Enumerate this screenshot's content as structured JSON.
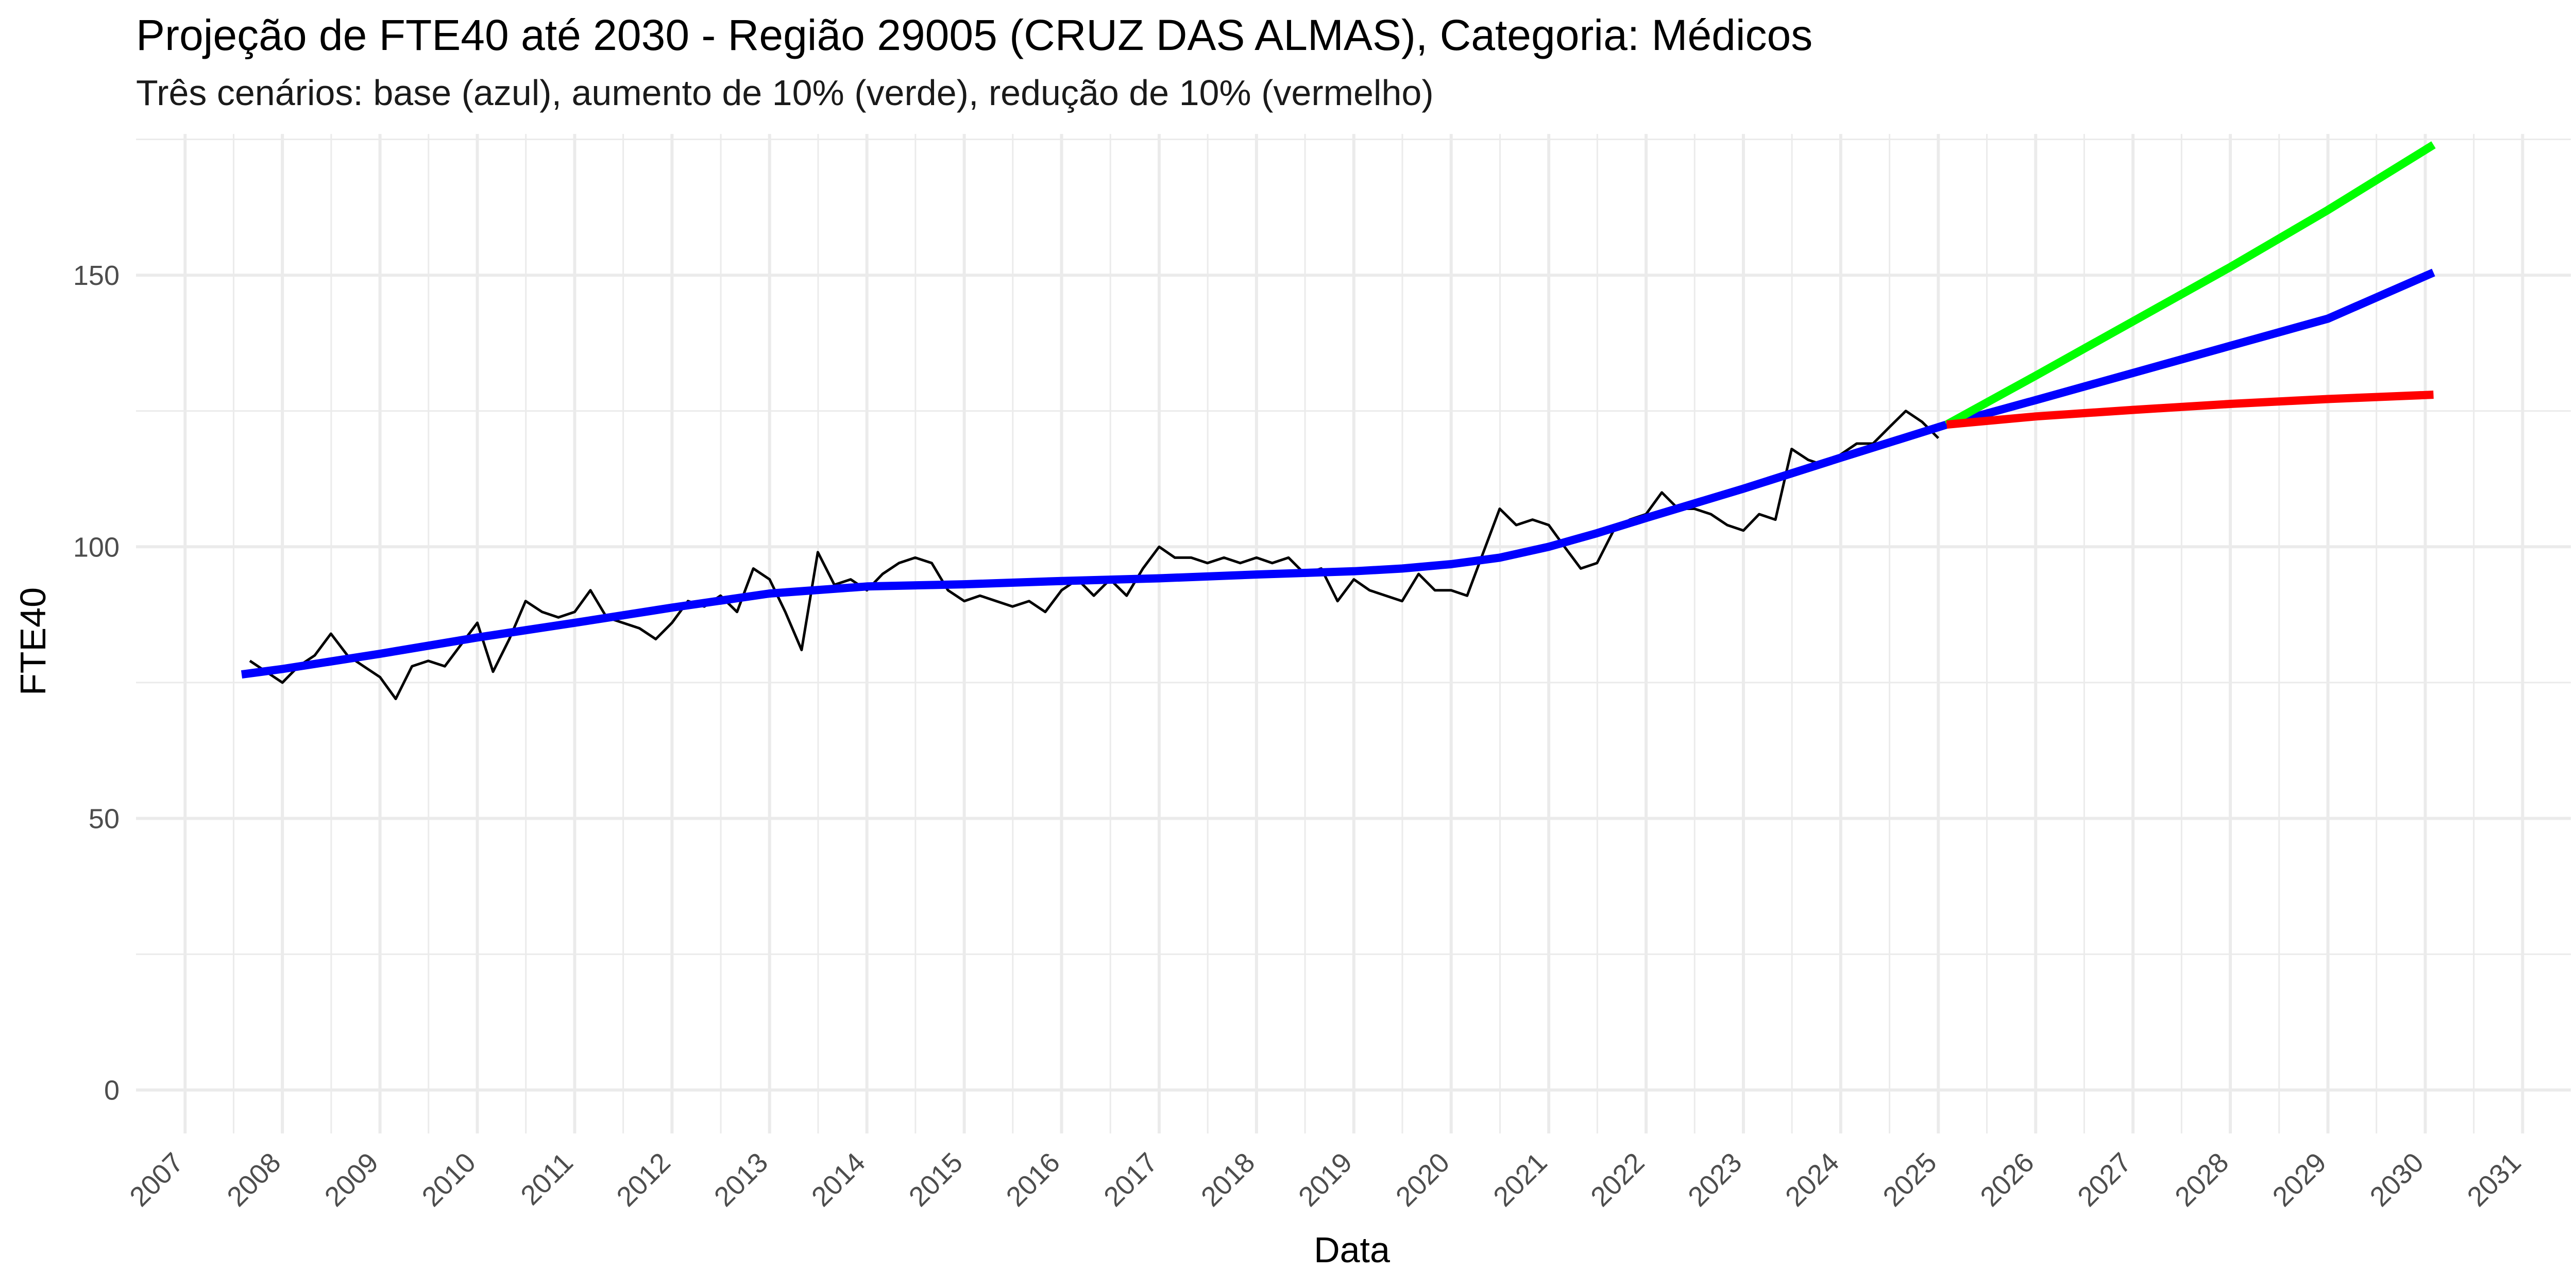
{
  "chart_data": {
    "type": "line",
    "title": "Projeção de FTE40 até 2030 - Região 29005 (CRUZ DAS ALMAS), Categoria: Médicos",
    "subtitle": "Três cenários: base (azul), aumento de 10% (verde), redução de 10% (vermelho)",
    "xlabel": "Data",
    "ylabel": "FTE40",
    "xlim": [
      "2006-07-01",
      "2031-07-01"
    ],
    "ylim": [
      -8,
      176
    ],
    "y_ticks": [
      0,
      50,
      100,
      150
    ],
    "x_ticks": [
      "2007",
      "2008",
      "2009",
      "2010",
      "2011",
      "2012",
      "2013",
      "2014",
      "2015",
      "2016",
      "2017",
      "2018",
      "2019",
      "2020",
      "2021",
      "2022",
      "2023",
      "2024",
      "2025",
      "2026",
      "2027",
      "2028",
      "2029",
      "2030",
      "2031"
    ],
    "grid": true,
    "legend": "none",
    "series": [
      {
        "color": "#000000",
        "x": [
          "2007-09-01",
          "2007-11-01",
          "2008-01-01",
          "2008-03-01",
          "2008-05-01",
          "2008-07-01",
          "2008-09-01",
          "2008-11-01",
          "2009-01-01",
          "2009-03-01",
          "2009-05-01",
          "2009-07-01",
          "2009-09-01",
          "2009-11-01",
          "2010-01-01",
          "2010-03-01",
          "2010-05-01",
          "2010-07-01",
          "2010-09-01",
          "2010-11-01",
          "2011-01-01",
          "2011-03-01",
          "2011-05-01",
          "2011-07-01",
          "2011-09-01",
          "2011-11-01",
          "2012-01-01",
          "2012-03-01",
          "2012-05-01",
          "2012-07-01",
          "2012-09-01",
          "2012-11-01",
          "2013-01-01",
          "2013-03-01",
          "2013-05-01",
          "2013-07-01",
          "2013-09-01",
          "2013-11-01",
          "2014-01-01",
          "2014-03-01",
          "2014-05-01",
          "2014-07-01",
          "2014-09-01",
          "2014-11-01",
          "2015-01-01",
          "2015-03-01",
          "2015-05-01",
          "2015-07-01",
          "2015-09-01",
          "2015-11-01",
          "2016-01-01",
          "2016-03-01",
          "2016-05-01",
          "2016-07-01",
          "2016-09-01",
          "2016-11-01",
          "2017-01-01",
          "2017-03-01",
          "2017-05-01",
          "2017-07-01",
          "2017-09-01",
          "2017-11-01",
          "2018-01-01",
          "2018-03-01",
          "2018-05-01",
          "2018-07-01",
          "2018-09-01",
          "2018-11-01",
          "2019-01-01",
          "2019-03-01",
          "2019-05-01",
          "2019-07-01",
          "2019-09-01",
          "2019-11-01",
          "2020-01-01",
          "2020-03-01",
          "2020-05-01",
          "2020-07-01",
          "2020-09-01",
          "2020-11-01",
          "2021-01-01",
          "2021-03-01",
          "2021-05-01",
          "2021-07-01",
          "2021-09-01",
          "2021-11-01",
          "2022-01-01",
          "2022-03-01",
          "2022-05-01",
          "2022-07-01",
          "2022-09-01",
          "2022-11-01",
          "2023-01-01",
          "2023-03-01",
          "2023-05-01",
          "2023-07-01",
          "2023-09-01",
          "2023-11-01",
          "2024-01-01",
          "2024-03-01",
          "2024-05-01",
          "2024-07-01",
          "2024-09-01",
          "2024-11-01",
          "2025-01-01"
        ],
        "y": [
          79,
          77,
          75,
          78,
          80,
          84,
          80,
          78,
          76,
          72,
          78,
          79,
          78,
          82,
          86,
          77,
          83,
          90,
          88,
          87,
          88,
          92,
          87,
          86,
          85,
          83,
          86,
          90,
          89,
          91,
          88,
          96,
          94,
          88,
          81,
          99,
          93,
          94,
          92,
          95,
          97,
          98,
          97,
          92,
          90,
          91,
          90,
          89,
          90,
          88,
          92,
          94,
          91,
          94,
          91,
          96,
          100,
          98,
          98,
          97,
          98,
          97,
          98,
          97,
          98,
          95,
          96,
          90,
          94,
          92,
          91,
          90,
          95,
          92,
          92,
          91,
          99,
          107,
          104,
          105,
          104,
          100,
          96,
          97,
          103,
          105,
          106,
          110,
          107,
          107,
          106,
          104,
          103,
          106,
          105,
          118,
          116,
          115,
          117,
          119,
          119,
          122,
          125,
          123,
          120
        ]
      },
      {
        "color": "#0000ff",
        "x": [
          "2007-08-01",
          "2008-01-01",
          "2009-01-01",
          "2010-01-01",
          "2011-01-01",
          "2012-01-01",
          "2013-01-01",
          "2014-01-01",
          "2015-01-01",
          "2016-01-01",
          "2017-01-01",
          "2018-01-01",
          "2019-01-01",
          "2019-07-01",
          "2020-01-01",
          "2020-07-01",
          "2021-01-01",
          "2021-07-01",
          "2022-01-01",
          "2023-01-01",
          "2024-01-01",
          "2025-02-01",
          "2026-01-01",
          "2027-01-01",
          "2028-01-01",
          "2029-01-01",
          "2030-02-01"
        ],
        "y": [
          76.5,
          77.5,
          80.3,
          83.3,
          86.0,
          88.8,
          91.4,
          92.7,
          93.1,
          93.7,
          94.2,
          94.9,
          95.5,
          96.0,
          96.8,
          98.0,
          100.0,
          102.5,
          105.3,
          110.7,
          116.4,
          122.5,
          127.0,
          132.0,
          137.0,
          142.0,
          150.5
        ]
      },
      {
        "color": "#00ff00",
        "x": [
          "2025-02-01",
          "2026-01-01",
          "2027-01-01",
          "2028-01-01",
          "2029-01-01",
          "2030-02-01"
        ],
        "y": [
          122.5,
          131.5,
          141.5,
          151.5,
          162.0,
          174.0
        ]
      },
      {
        "color": "#ff0000",
        "x": [
          "2025-02-01",
          "2026-01-01",
          "2027-01-01",
          "2028-01-01",
          "2029-01-01",
          "2030-02-01"
        ],
        "y": [
          122.5,
          124.0,
          125.2,
          126.3,
          127.2,
          128.0
        ]
      }
    ]
  }
}
